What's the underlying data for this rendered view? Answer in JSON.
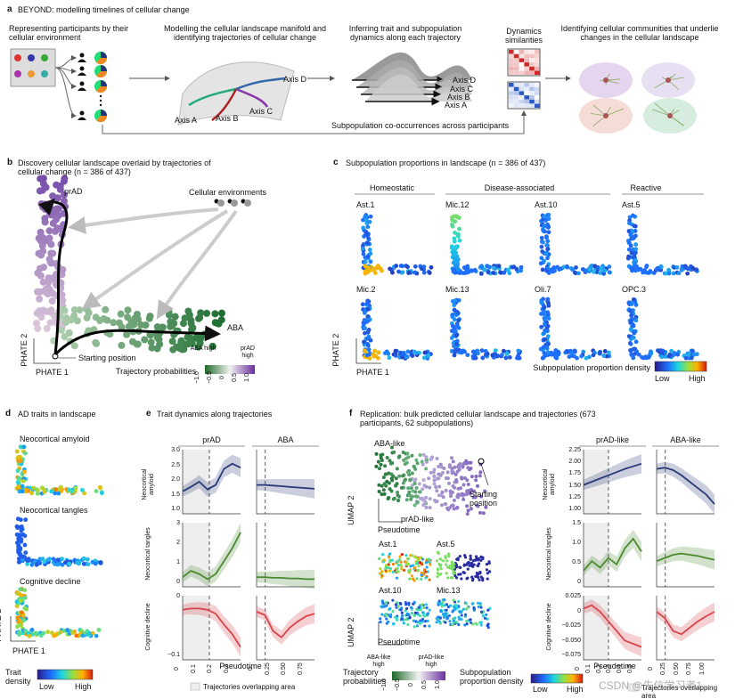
{
  "panel_a": {
    "label": "a",
    "title": "BEYOND: modelling timelines of cellular change",
    "steps": [
      "Representing participants by their cellular environment",
      "Modelling the cellular landscape manifold and identifying trajectories of cellular change",
      "Inferring trait and subpopulation dynamics along each trajectory",
      "Dynamics similarities",
      "Identifying cellular communities that underlie changes in the cellular landscape"
    ],
    "manifold_axes": [
      "Axis D",
      "Axis C",
      "Axis B",
      "Axis A"
    ],
    "dynamics_axes": [
      "Axis D",
      "Axis C",
      "Axis B",
      "Axis A"
    ],
    "footer": "Subpopulation co-occurrences across participants"
  },
  "panel_b": {
    "label": "b",
    "title": "Discovery cellular landscape overlaid by trajectories of cellular change (n = 386 of 437)",
    "traj_labels": [
      "prAD",
      "ABA"
    ],
    "environments": "Cellular environments",
    "start": "Starting position",
    "y_axis": "PHATE 2",
    "x_axis": "PHATE 1",
    "colorbar_title": "Trajectory probabilities",
    "colorbar_ends": [
      "ABA high",
      "prAD high"
    ],
    "colorbar_ticks": [
      "−1.0",
      "−0.5",
      "0",
      "0.5",
      "1.0"
    ]
  },
  "panel_c": {
    "label": "c",
    "title": "Subpopulation proportions in landscape (n = 386 of 437)",
    "groups": [
      "Homeostatic",
      "Disease-associated",
      "Reactive"
    ],
    "subpopulations": [
      "Ast.1",
      "Mic.12",
      "Ast.10",
      "Ast.5",
      "Mic.2",
      "Mic.13",
      "Oli.7",
      "OPC.3"
    ],
    "y_axis": "PHATE 2",
    "x_axis": "PHATE 1",
    "colorbar_title": "Subpopulation proportion density",
    "colorbar_ends": [
      "Low",
      "High"
    ]
  },
  "panel_d": {
    "label": "d",
    "title": "AD traits in landscape",
    "traits": [
      "Neocortical amyloid",
      "Neocortical tangles",
      "Cognitive decline"
    ],
    "y_axis": "PHATE 2",
    "x_axis": "PHATE 1",
    "colorbar_title": "Trait density",
    "colorbar_ends": [
      "Low",
      "High"
    ]
  },
  "panel_e": {
    "label": "e",
    "title": "Trait dynamics along trajectories",
    "columns": [
      "prAD",
      "ABA"
    ],
    "rows": [
      "Neocortical amyloid",
      "Neocortical tangles",
      "Cognitive decline"
    ],
    "yticks": [
      [
        "3.0",
        "2.5",
        "2.0",
        "1.5",
        "1.0"
      ],
      [
        "3",
        "2",
        "1",
        "0"
      ],
      [
        "0",
        "−0.1"
      ]
    ],
    "xticks": [
      [
        "0",
        "0.1",
        "0.2",
        "0.3"
      ],
      [
        "0",
        "0.25",
        "0.50",
        "0.75"
      ]
    ],
    "x_axis": "Pseudotime",
    "legend": "Trajectories overlapping area"
  },
  "panel_f": {
    "label": "f",
    "title": "Replication: bulk predicted cellular landscape and trajectories (673 participants, 62 subpopulations)",
    "traj_labels": [
      "ABA-like",
      "prAD-like"
    ],
    "start": "Starting position",
    "y_axis": "UMAP 2",
    "x_axis": "Pseudotime",
    "subpopulations": [
      "Ast.1",
      "Ast.5",
      "Ast.10",
      "Mic.13"
    ],
    "colorbar_title": "Trajectory probabilities",
    "colorbar_ends": [
      "ABA-like high",
      "prAD-like high"
    ],
    "colorbar_ticks": [
      "−1.0",
      "−0.5",
      "0",
      "0.5",
      "1.0"
    ],
    "density_title": "Subpopulation proportion density",
    "density_ends": [
      "Low",
      "High"
    ],
    "columns": [
      "prAD-like",
      "ABA-like"
    ],
    "rows": [
      "Neocortical amyloid",
      "Neocortical tangles",
      "Cognitive decline"
    ],
    "yticks": [
      [
        "2.25",
        "2.00",
        "1.75",
        "1.50",
        "1.25",
        "1.00"
      ],
      [
        "1.5",
        "1.0",
        "0.5",
        "0"
      ],
      [
        "0.025",
        "0",
        "−0.025",
        "−0.050",
        "−0.075"
      ]
    ],
    "xticks": [
      [
        "0",
        "0.1",
        "0.2",
        "0.3",
        "0.4",
        "0.5"
      ],
      [
        "0",
        "0.25",
        "0.50",
        "0.75",
        "1.00"
      ]
    ],
    "legend": "Trajectories overlapping area"
  },
  "watermark": "CSDN @先信学习者1"
}
